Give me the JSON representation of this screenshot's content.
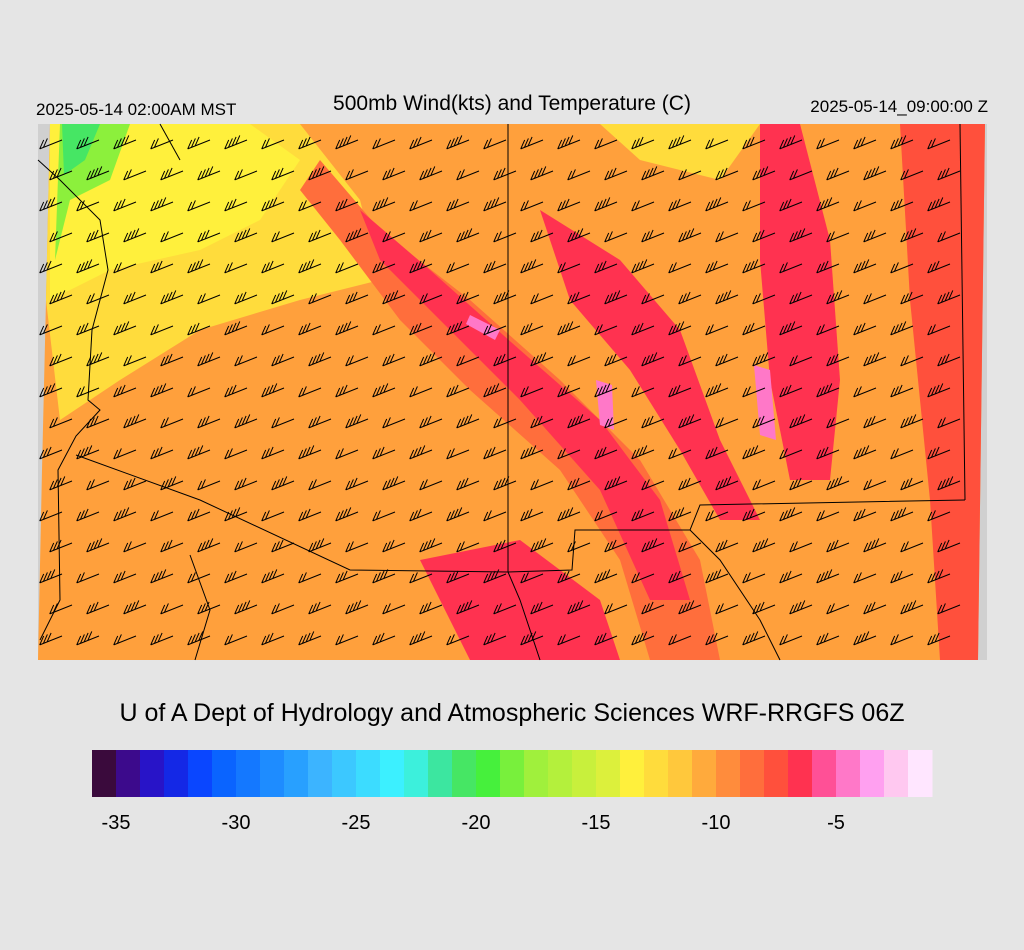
{
  "header": {
    "valid_local": "2025-05-14 02:00AM MST",
    "title": "500mb Wind(kts) and Temperature (C)",
    "valid_utc": "2025-05-14_09:00:00 Z"
  },
  "credit": "U of A Dept of Hydrology and Atmospheric Sciences WRF-RRGFS 06Z",
  "colorbar": {
    "range": [
      -36,
      -1
    ],
    "ticks": [
      -35,
      -30,
      -25,
      -20,
      -15,
      -10,
      -5
    ],
    "colors": [
      "#3a0a3c",
      "#3c0a8c",
      "#2814c8",
      "#1428e6",
      "#0a46ff",
      "#0a64ff",
      "#1478ff",
      "#1e8cff",
      "#28a0ff",
      "#3cb4ff",
      "#3cc8ff",
      "#3cdcff",
      "#3cf0ff",
      "#3cf0dc",
      "#3ce6a0",
      "#46e664",
      "#46f03c",
      "#78f03c",
      "#a0f03c",
      "#b4f03c",
      "#c8f03c",
      "#dcf03c",
      "#fff03c",
      "#ffdc3c",
      "#ffc83c",
      "#ffaa3c",
      "#ff8c3c",
      "#ff6e3c",
      "#ff503c",
      "#ff3250",
      "#ff5096",
      "#ff78c8",
      "#ffa0f0",
      "#ffc8f0",
      "#ffe6ff"
    ]
  }
}
